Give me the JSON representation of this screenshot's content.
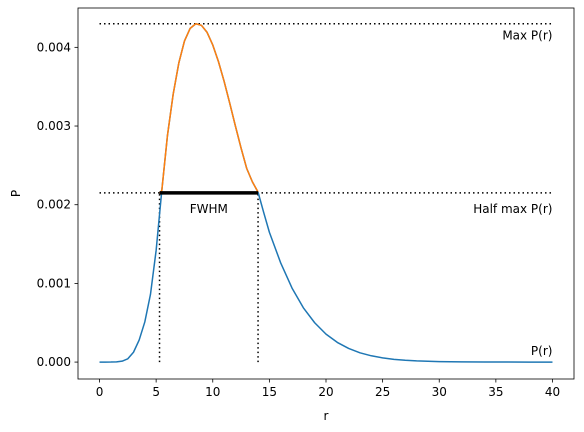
{
  "chart_data": {
    "type": "line",
    "xlabel": "r",
    "ylabel": "P",
    "xlim": [
      -1.9,
      41.9
    ],
    "ylim": [
      -0.000215,
      0.0045
    ],
    "xticks": [
      0,
      5,
      10,
      15,
      20,
      25,
      30,
      35,
      40
    ],
    "yticks": [
      0.0,
      0.001,
      0.002,
      0.003,
      0.004
    ],
    "ytick_labels": [
      "0.000",
      "0.001",
      "0.002",
      "0.003",
      "0.004"
    ],
    "grid": false,
    "series": [
      {
        "name": "P(r)",
        "color": "#1f77b4",
        "x": [
          0,
          0.5,
          1,
          1.5,
          2,
          2.5,
          3,
          3.5,
          4,
          4.5,
          5,
          5.5,
          6,
          6.5,
          7,
          7.5,
          8,
          8.5,
          9,
          9.5,
          10,
          10.5,
          11,
          11.5,
          12,
          12.5,
          13,
          13.5,
          14,
          14.5,
          15,
          16,
          17,
          18,
          19,
          20,
          21,
          22,
          23,
          24,
          25,
          26,
          27,
          28,
          30,
          32,
          34,
          36,
          38,
          40
        ],
        "y": [
          0,
          1e-07,
          5e-07,
          3e-06,
          1.2e-05,
          4.2e-05,
          0.000125,
          0.00028,
          0.00051,
          0.00086,
          0.00142,
          0.00218,
          0.00288,
          0.0034,
          0.0038,
          0.00408,
          0.00424,
          0.0043,
          0.00428,
          0.00419,
          0.00403,
          0.00382,
          0.00357,
          0.00329,
          0.003,
          0.00272,
          0.00246,
          0.00229,
          0.00216,
          0.0019,
          0.00165,
          0.00126,
          0.00094,
          0.00069,
          0.0005,
          0.000355,
          0.00025,
          0.000173,
          0.000118,
          8e-05,
          5.3e-05,
          3.5e-05,
          2.3e-05,
          1.5e-05,
          6e-06,
          2.3e-06,
          9e-07,
          3e-07,
          1e-07,
          0.0
        ]
      },
      {
        "name": "",
        "color": "#ff7f0e",
        "x": [
          5.3,
          5.5,
          6,
          6.5,
          7,
          7.5,
          8,
          8.5,
          9,
          9.5,
          10,
          10.5,
          11,
          11.5,
          12,
          12.5,
          13,
          13.5,
          14
        ],
        "y": [
          0.00215,
          0.00218,
          0.00288,
          0.0034,
          0.0038,
          0.00408,
          0.00424,
          0.0043,
          0.00428,
          0.00419,
          0.00403,
          0.00382,
          0.00357,
          0.00329,
          0.003,
          0.00272,
          0.00246,
          0.00229,
          0.00216
        ]
      }
    ],
    "max_value": 0.0043,
    "half_max_value": 0.00215,
    "fwhm_x": [
      5.3,
      14.0
    ],
    "annotations": {
      "max_label": "Max P(r)",
      "half_label": "Half max P(r)",
      "fwhm_label": "FWHM",
      "curve_label": "P(r)"
    }
  }
}
